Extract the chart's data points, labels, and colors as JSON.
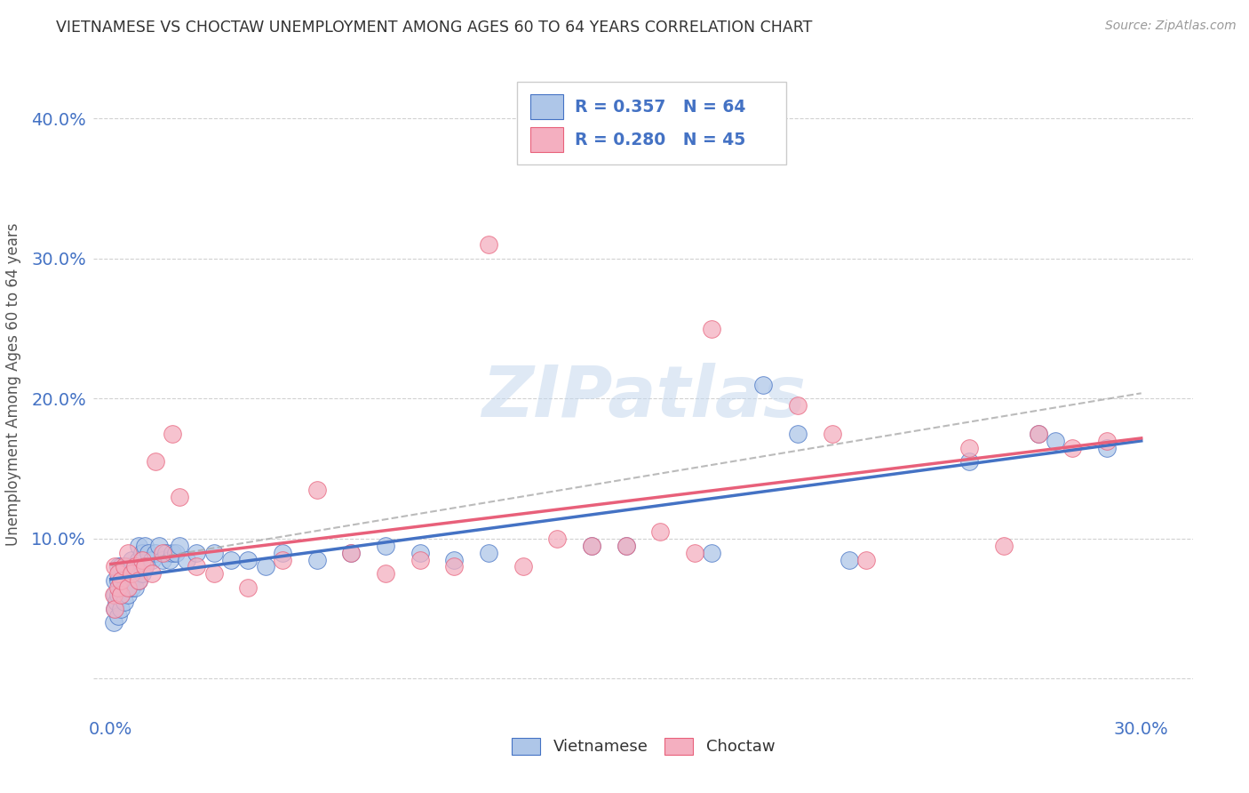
{
  "title": "VIETNAMESE VS CHOCTAW UNEMPLOYMENT AMONG AGES 60 TO 64 YEARS CORRELATION CHART",
  "source": "Source: ZipAtlas.com",
  "ylabel": "Unemployment Among Ages 60 to 64 years",
  "xlim": [
    -0.005,
    0.315
  ],
  "ylim": [
    -0.025,
    0.445
  ],
  "xtick_vals": [
    0.0,
    0.05,
    0.1,
    0.15,
    0.2,
    0.25,
    0.3
  ],
  "ytick_vals": [
    0.0,
    0.1,
    0.2,
    0.3,
    0.4
  ],
  "xtick_labels": [
    "0.0%",
    "",
    "",
    "",
    "",
    "",
    "30.0%"
  ],
  "ytick_labels": [
    "",
    "10.0%",
    "20.0%",
    "30.0%",
    "40.0%"
  ],
  "vietnamese_color": "#aec6e8",
  "choctaw_color": "#f4afc0",
  "trend_blue": "#4472c4",
  "trend_pink": "#e8607a",
  "watermark": "ZIPatlas",
  "legend_R_viet": "R = 0.357",
  "legend_N_viet": "N = 64",
  "legend_R_choc": "R = 0.280",
  "legend_N_choc": "N = 45",
  "background_color": "#ffffff",
  "grid_color": "#cccccc",
  "title_color": "#333333",
  "source_color": "#999999",
  "axis_color": "#4472c4",
  "ylabel_color": "#555555",
  "vietnamese_x": [
    0.0008,
    0.001,
    0.001,
    0.001,
    0.0015,
    0.002,
    0.002,
    0.002,
    0.002,
    0.003,
    0.003,
    0.003,
    0.003,
    0.004,
    0.004,
    0.004,
    0.005,
    0.005,
    0.005,
    0.006,
    0.006,
    0.006,
    0.007,
    0.007,
    0.008,
    0.008,
    0.008,
    0.009,
    0.009,
    0.01,
    0.01,
    0.011,
    0.012,
    0.013,
    0.014,
    0.015,
    0.016,
    0.017,
    0.018,
    0.019,
    0.02,
    0.022,
    0.025,
    0.03,
    0.035,
    0.04,
    0.045,
    0.05,
    0.06,
    0.07,
    0.08,
    0.09,
    0.1,
    0.11,
    0.14,
    0.15,
    0.175,
    0.19,
    0.2,
    0.215,
    0.25,
    0.27,
    0.275,
    0.29
  ],
  "vietnamese_y": [
    0.04,
    0.05,
    0.06,
    0.07,
    0.055,
    0.045,
    0.06,
    0.07,
    0.08,
    0.05,
    0.06,
    0.07,
    0.08,
    0.055,
    0.065,
    0.075,
    0.06,
    0.07,
    0.08,
    0.065,
    0.075,
    0.085,
    0.065,
    0.08,
    0.07,
    0.085,
    0.095,
    0.075,
    0.09,
    0.08,
    0.095,
    0.09,
    0.085,
    0.09,
    0.095,
    0.085,
    0.09,
    0.085,
    0.09,
    0.09,
    0.095,
    0.085,
    0.09,
    0.09,
    0.085,
    0.085,
    0.08,
    0.09,
    0.085,
    0.09,
    0.095,
    0.09,
    0.085,
    0.09,
    0.095,
    0.095,
    0.09,
    0.21,
    0.175,
    0.085,
    0.155,
    0.175,
    0.17,
    0.165
  ],
  "choctaw_x": [
    0.0008,
    0.001,
    0.001,
    0.002,
    0.002,
    0.003,
    0.003,
    0.004,
    0.005,
    0.005,
    0.006,
    0.007,
    0.008,
    0.009,
    0.01,
    0.012,
    0.013,
    0.015,
    0.018,
    0.02,
    0.025,
    0.03,
    0.04,
    0.05,
    0.06,
    0.07,
    0.08,
    0.09,
    0.1,
    0.11,
    0.12,
    0.13,
    0.14,
    0.15,
    0.16,
    0.17,
    0.175,
    0.2,
    0.21,
    0.22,
    0.25,
    0.26,
    0.27,
    0.28,
    0.29
  ],
  "choctaw_y": [
    0.06,
    0.05,
    0.08,
    0.065,
    0.075,
    0.06,
    0.07,
    0.08,
    0.065,
    0.09,
    0.075,
    0.08,
    0.07,
    0.085,
    0.08,
    0.075,
    0.155,
    0.09,
    0.175,
    0.13,
    0.08,
    0.075,
    0.065,
    0.085,
    0.135,
    0.09,
    0.075,
    0.085,
    0.08,
    0.31,
    0.08,
    0.1,
    0.095,
    0.095,
    0.105,
    0.09,
    0.25,
    0.195,
    0.175,
    0.085,
    0.165,
    0.095,
    0.175,
    0.165,
    0.17
  ]
}
